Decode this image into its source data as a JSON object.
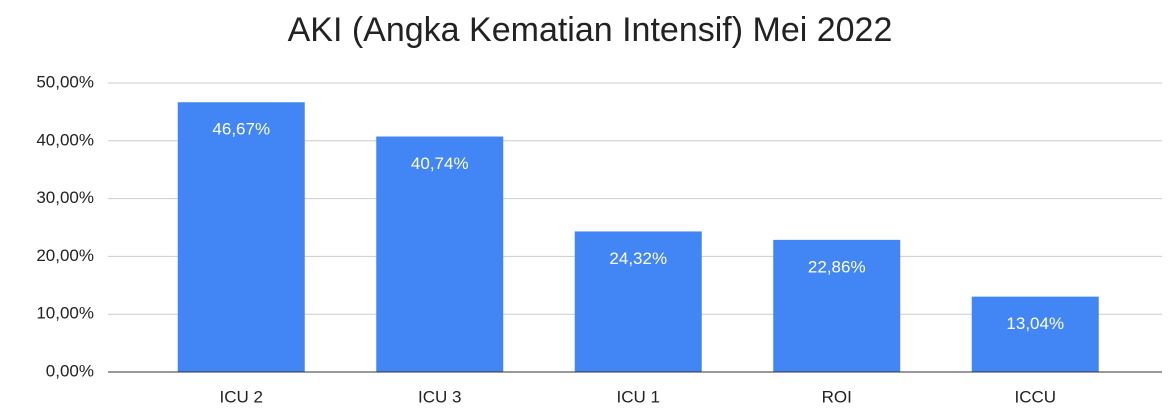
{
  "chart_data": {
    "type": "bar",
    "title": "AKI (Angka Kematian Intensif) Mei 2022",
    "categories": [
      "ICU 2",
      "ICU 3",
      "ICU 1",
      "ROI",
      "ICCU"
    ],
    "values": [
      46.67,
      40.74,
      24.32,
      22.86,
      13.04
    ],
    "value_labels": [
      "46,67%",
      "40,74%",
      "24,32%",
      "22,86%",
      "13,04%"
    ],
    "color": "#4285f4",
    "ylim": [
      0,
      50
    ],
    "yticks": [
      {
        "value": 0,
        "label": "0,00%"
      },
      {
        "value": 10,
        "label": "10,00%"
      },
      {
        "value": 20,
        "label": "20,00%"
      },
      {
        "value": 30,
        "label": "30,00%"
      },
      {
        "value": 40,
        "label": "40,00%"
      },
      {
        "value": 50,
        "label": "50,00%"
      }
    ],
    "grid": true
  }
}
